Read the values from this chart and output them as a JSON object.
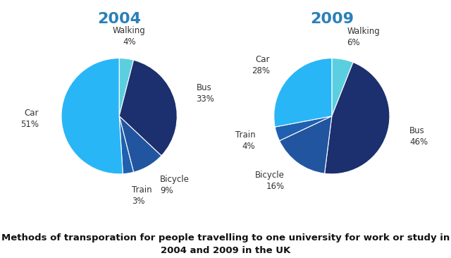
{
  "title_color": "#2980b9",
  "title_fontsize": 16,
  "label_fontsize": 8.5,
  "caption": "Methods of transporation for people travelling to one university for work or study in\n2004 and 2009 in the UK",
  "caption_fontsize": 9.5,
  "bg_color": "#ffffff",
  "text_color": "#333333",
  "year2004": {
    "title": "2004",
    "labels": [
      "Walking",
      "Bus",
      "Bicycle",
      "Train",
      "Car"
    ],
    "values": [
      4,
      33,
      9,
      3,
      51
    ],
    "colors": [
      "#5bcfdf",
      "#1c2f6e",
      "#2255a0",
      "#2060b0",
      "#29b6f6"
    ]
  },
  "year2009": {
    "title": "2009",
    "labels": [
      "Walking",
      "Bus",
      "Bicycle",
      "Train",
      "Car"
    ],
    "values": [
      6,
      46,
      16,
      4,
      28
    ],
    "colors": [
      "#5bcfdf",
      "#1c2f6e",
      "#2255a0",
      "#2060b0",
      "#29b6f6"
    ]
  }
}
